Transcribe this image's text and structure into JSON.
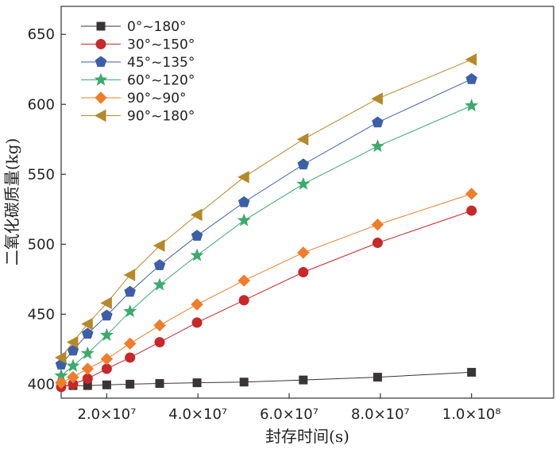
{
  "chart_data": {
    "type": "line",
    "xlabel": "封存时间(s)",
    "ylabel": "二氧化碳质量(kg)",
    "xlim": [
      10000000,
      118000000
    ],
    "ylim": [
      390,
      670
    ],
    "x_ticks": [
      20000000,
      40000000,
      60000000,
      80000000,
      100000000
    ],
    "x_tick_labels": [
      "2.0×10⁷",
      "4.0×10⁷",
      "6.0×10⁷",
      "8.0×10⁷",
      "1.0×10⁸"
    ],
    "y_ticks": [
      400,
      450,
      500,
      550,
      600,
      650
    ],
    "y_tick_labels": [
      "400",
      "450",
      "500",
      "550",
      "600",
      "650"
    ],
    "x": [
      10000000,
      12600000,
      15800000,
      20000000,
      25100000,
      31600000,
      39800000,
      50100000,
      63100000,
      79400000,
      100000000
    ],
    "legend_position": "top-left",
    "series": [
      {
        "name": "0°~180°",
        "color": "#3a3534",
        "marker": "square",
        "values": [
          399,
          399,
          399,
          399.5,
          400,
          400.5,
          401,
          401.5,
          403,
          405,
          408.5
        ]
      },
      {
        "name": "30°~150°",
        "color": "#c8282a",
        "marker": "circle",
        "values": [
          398,
          400,
          404,
          411,
          419,
          430,
          444,
          460,
          480,
          501,
          524
        ]
      },
      {
        "name": "45°~135°",
        "color": "#3c5fa8",
        "marker": "pentagon",
        "values": [
          414,
          424,
          436,
          449,
          466,
          485,
          506,
          530,
          557,
          587,
          618
        ]
      },
      {
        "name": "60°~120°",
        "color": "#3caa6e",
        "marker": "star",
        "values": [
          406,
          413,
          422,
          435,
          452,
          471,
          492,
          517,
          543,
          570,
          599
        ]
      },
      {
        "name": "90°~90°",
        "color": "#f07d2a",
        "marker": "diamond",
        "values": [
          401,
          405,
          411,
          418,
          429,
          442,
          457,
          474,
          494,
          514,
          536
        ]
      },
      {
        "name": "90°~180°",
        "color": "#b5892a",
        "marker": "triangle-left",
        "values": [
          419,
          430,
          443,
          458,
          478,
          499,
          521,
          548,
          575,
          604,
          632
        ]
      }
    ]
  }
}
